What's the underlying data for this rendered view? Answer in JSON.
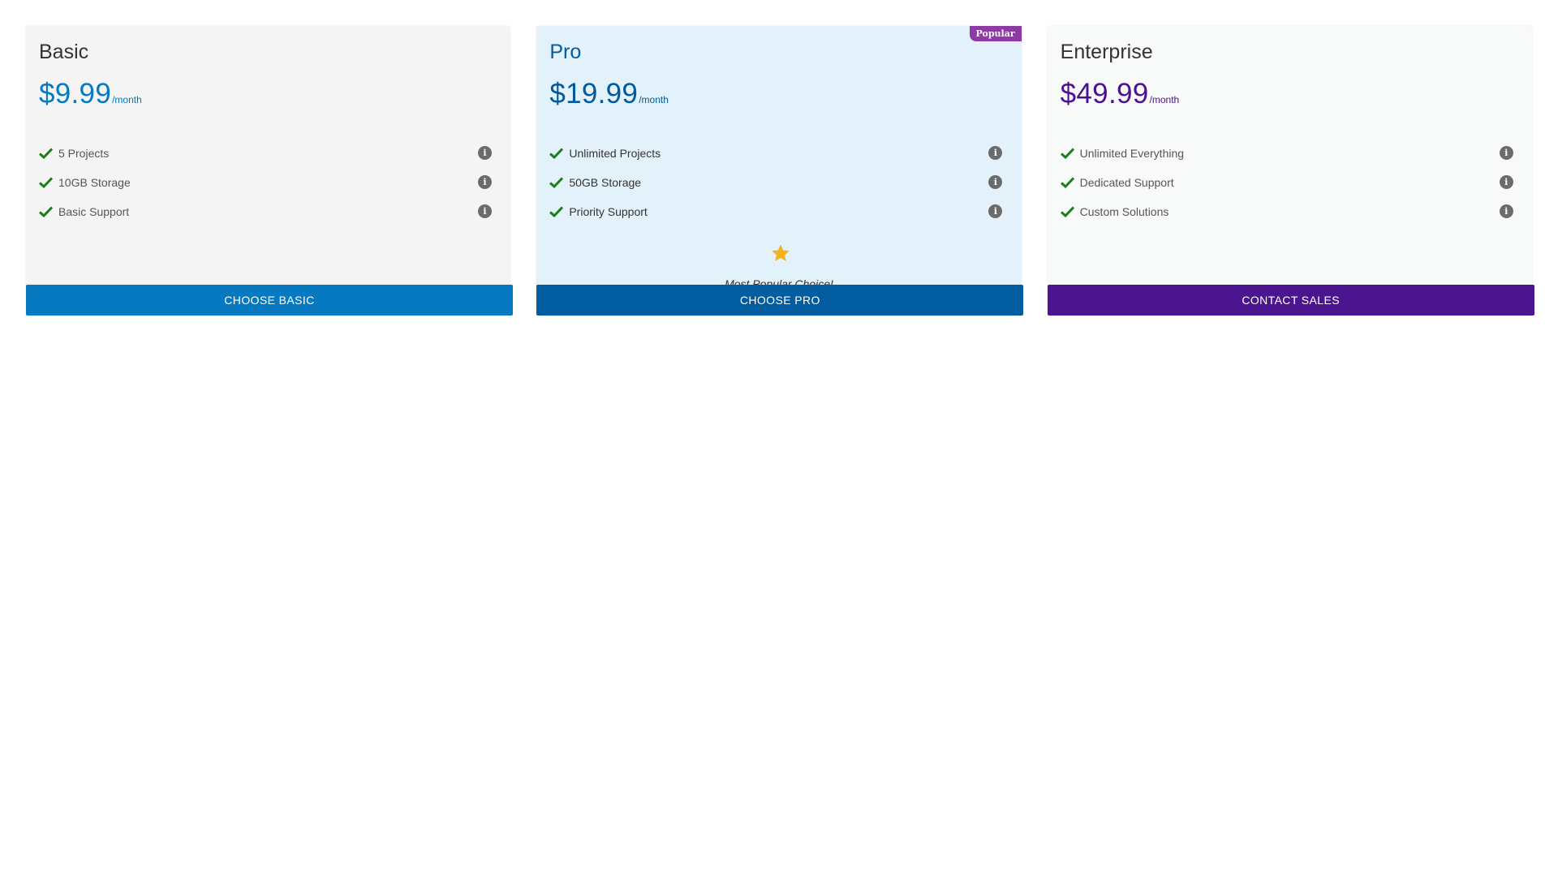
{
  "plans": [
    {
      "name": "Basic",
      "price": "$9.99",
      "period": "/month",
      "features": [
        "5 Projects",
        "10GB Storage",
        "Basic Support"
      ],
      "cta_label": "CHOOSE BASIC",
      "accent_color": "#0679c0"
    },
    {
      "name": "Pro",
      "price": "$19.99",
      "period": "/month",
      "features": [
        "Unlimited Projects",
        "50GB Storage",
        "Priority Support"
      ],
      "badge": "Popular",
      "highlight_text": "Most Popular Choice!",
      "cta_label": "CHOOSE PRO",
      "accent_color": "#015ca0"
    },
    {
      "name": "Enterprise",
      "price": "$49.99",
      "period": "/month",
      "features": [
        "Unlimited Everything",
        "Dedicated Support",
        "Custom Solutions"
      ],
      "cta_label": "CONTACT SALES",
      "accent_color": "#4b1590"
    }
  ],
  "icons": {
    "feature_check": "check-icon",
    "feature_info": "info-icon",
    "highlight": "star-icon"
  },
  "colors": {
    "check": "#1a7f1a",
    "info": "#6b6b6b",
    "star": "#f6b21a",
    "badge": "#8e3aa5"
  }
}
